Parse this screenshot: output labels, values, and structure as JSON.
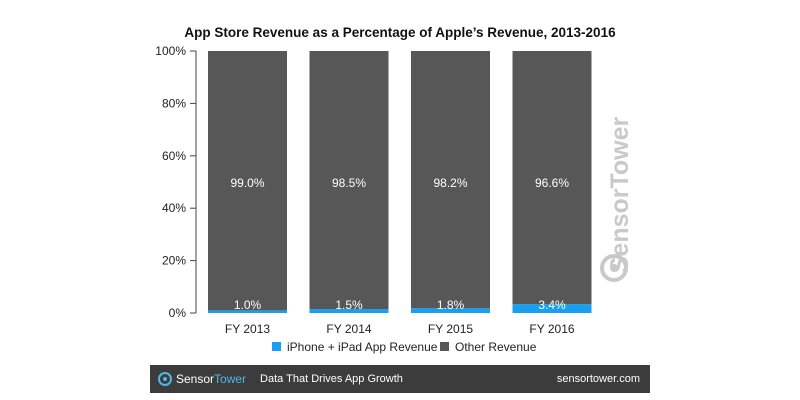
{
  "chart_data": {
    "type": "bar",
    "stacked": true,
    "title": "App Store Revenue as a Percentage of Apple’s Revenue, 2013-2016",
    "categories": [
      "FY 2013",
      "FY 2014",
      "FY 2015",
      "FY 2016"
    ],
    "series": [
      {
        "name": "iPhone + iPad App Revenue",
        "color": "#1a9ff0",
        "values": [
          1.0,
          1.5,
          1.8,
          3.4
        ],
        "labels": [
          "1.0%",
          "1.5%",
          "1.8%",
          "3.4%"
        ]
      },
      {
        "name": "Other Revenue",
        "color": "#575757",
        "values": [
          99.0,
          98.5,
          98.2,
          96.6
        ],
        "labels": [
          "99.0%",
          "98.5%",
          "98.2%",
          "96.6%"
        ]
      }
    ],
    "ylim": [
      0,
      100
    ],
    "yticks": [
      0,
      20,
      40,
      60,
      80,
      100
    ],
    "ytick_labels": [
      "0%",
      "20%",
      "40%",
      "60%",
      "80%",
      "100%"
    ],
    "grid": false,
    "legend_position": "bottom"
  },
  "watermark": {
    "part1": "Sensor",
    "part2": "Tower"
  },
  "footer": {
    "brand_part1": "Sensor",
    "brand_part2": "Tower",
    "tagline": "Data That Drives App Growth",
    "url": "sensortower.com"
  }
}
